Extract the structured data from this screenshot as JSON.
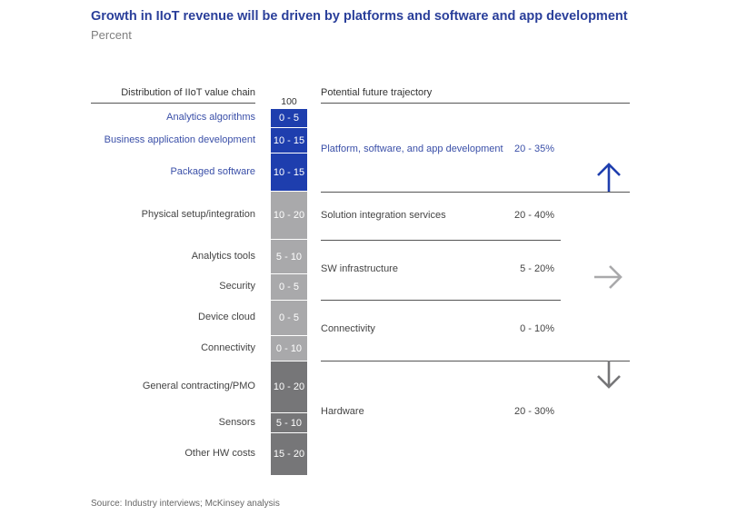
{
  "title": "Growth in IIoT revenue will be driven by platforms and software and app development",
  "subtitle": "Percent",
  "source": "Source: Industry interviews; McKinsey analysis",
  "colors": {
    "title": "#2a3f9a",
    "software_blue": "#1e3eae",
    "services_grey": "#a9a9ab",
    "hardware_grey": "#767678"
  },
  "chart_data": {
    "type": "stacked-bar",
    "left_header": "Distribution of IIoT value chain",
    "bar_total_label": "100",
    "bar_total": 100,
    "segments": [
      {
        "label": "Analytics algorithms",
        "range": "0 - 5",
        "group": "software"
      },
      {
        "label": "Business application development",
        "range": "10 - 15",
        "group": "software"
      },
      {
        "label": "Packaged software",
        "range": "10 - 15",
        "group": "software"
      },
      {
        "label": "Physical setup/integration",
        "range": "10 - 20",
        "group": "services"
      },
      {
        "label": "Analytics tools",
        "range": "5 - 10",
        "group": "services"
      },
      {
        "label": "Security",
        "range": "0 - 5",
        "group": "services"
      },
      {
        "label": "Device cloud",
        "range": "0 - 5",
        "group": "services"
      },
      {
        "label": "Connectivity",
        "range": "0 - 10",
        "group": "services"
      },
      {
        "label": "General contracting/PMO",
        "range": "10 - 20",
        "group": "hardware"
      },
      {
        "label": "Sensors",
        "range": "5 - 10",
        "group": "hardware"
      },
      {
        "label": "Other HW costs",
        "range": "15 - 20",
        "group": "hardware"
      }
    ],
    "right_header": "Potential future trajectory",
    "trajectory": [
      {
        "label": "Platform, software, and app development",
        "value": "20 - 35%",
        "direction": "up",
        "group": "software"
      },
      {
        "label": "Solution integration services",
        "value": "20 - 40%",
        "direction": "flat",
        "group": "services"
      },
      {
        "label": "SW infrastructure",
        "value": "5 - 20%",
        "direction": "flat",
        "group": "services"
      },
      {
        "label": "Connectivity",
        "value": "0 - 10%",
        "direction": "flat",
        "group": "services"
      },
      {
        "label": "Hardware",
        "value": "20 - 30%",
        "direction": "down",
        "group": "hardware"
      }
    ],
    "arrows": [
      {
        "name": "up-arrow-icon",
        "meaning": "growth",
        "color": "#1e3eae"
      },
      {
        "name": "right-arrow-icon",
        "meaning": "flat",
        "color": "#a9a9ab"
      },
      {
        "name": "down-arrow-icon",
        "meaning": "decline",
        "color": "#767678"
      }
    ]
  }
}
